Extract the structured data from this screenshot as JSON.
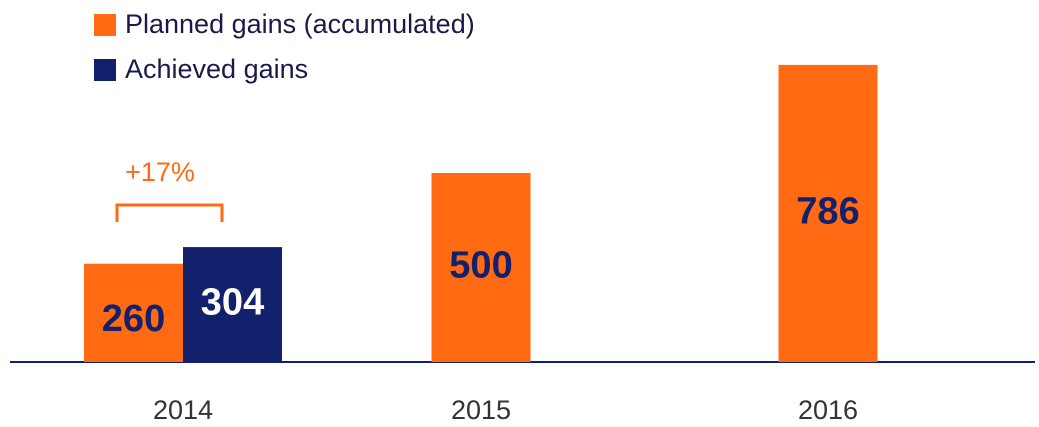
{
  "chart_data": {
    "type": "bar",
    "categories": [
      "2014",
      "2015",
      "2016"
    ],
    "series": [
      {
        "name": "Planned gains (accumulated)",
        "color": "#ff6a13",
        "values": [
          260,
          500,
          786
        ]
      },
      {
        "name": "Achieved gains",
        "color": "#13206b",
        "values": [
          304,
          null,
          null
        ]
      }
    ],
    "annotations": [
      "+17%"
    ]
  }
}
